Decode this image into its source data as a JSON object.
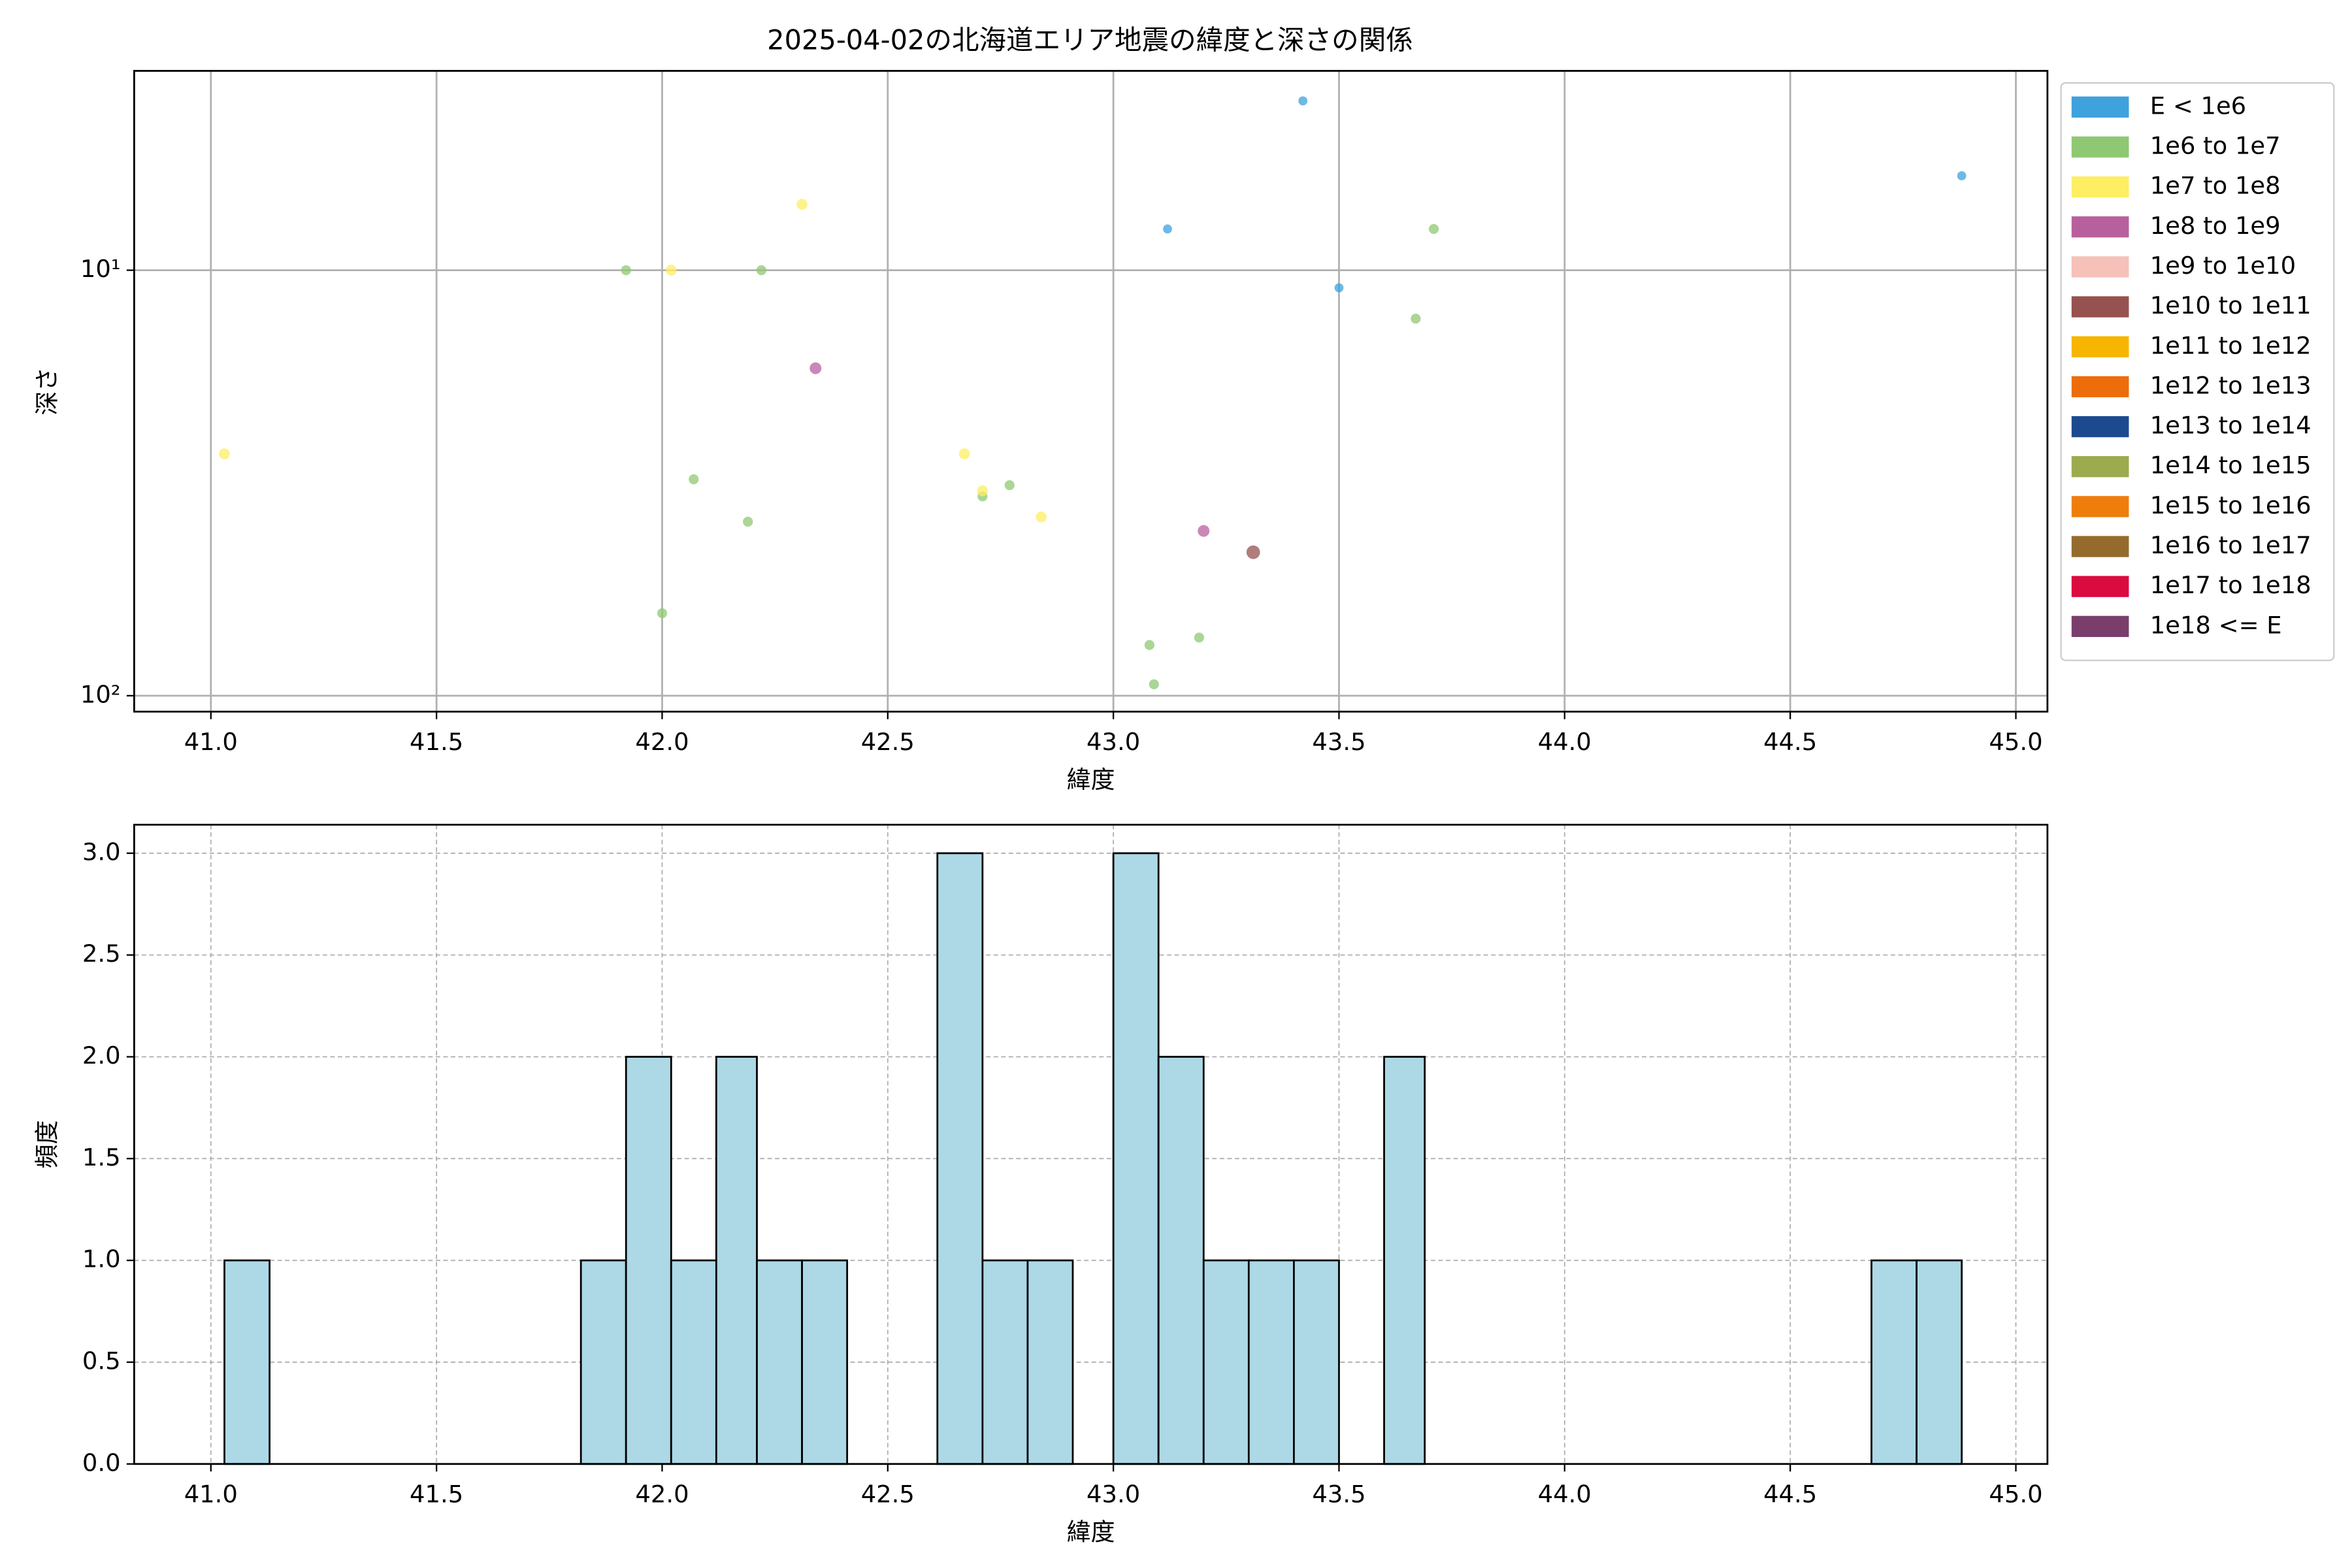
{
  "chart_data": [
    {
      "type": "scatter",
      "title": "2025-04-02の北海道エリア地震の緯度と深さの関係",
      "xlabel": "緯度",
      "ylabel": "深さ",
      "xlim": [
        40.83,
        45.07
      ],
      "ylim": [
        109,
        3.4
      ],
      "yscale": "log",
      "grid": true,
      "grid_style": "solid",
      "legend": "outside-right",
      "xticks": [
        {
          "value": 41.0,
          "label": "41.0"
        },
        {
          "value": 41.5,
          "label": "41.5"
        },
        {
          "value": 42.0,
          "label": "42.0"
        },
        {
          "value": 42.5,
          "label": "42.5"
        },
        {
          "value": 43.0,
          "label": "43.0"
        },
        {
          "value": 43.5,
          "label": "43.5"
        },
        {
          "value": 44.0,
          "label": "44.0"
        },
        {
          "value": 44.5,
          "label": "44.5"
        },
        {
          "value": 45.0,
          "label": "45.0"
        }
      ],
      "yticks": [
        {
          "value": 10,
          "label": "10¹"
        },
        {
          "value": 100,
          "label": "10²"
        }
      ],
      "series": [
        {
          "name": "E < 1e6",
          "color": "#3ea2dc",
          "x": [
            43.42,
            44.88,
            43.12,
            43.5
          ],
          "values": [
            4.0,
            6.0,
            8.0,
            11
          ]
        },
        {
          "name": "1e6 to 1e7",
          "color": "#8fc872",
          "x": [
            43.71,
            43.67,
            41.92,
            42.22,
            42.07,
            42.71,
            42.77,
            42.19,
            42.0,
            43.19,
            43.08,
            43.09
          ],
          "values": [
            8,
            13,
            10,
            10,
            31,
            34,
            32,
            39,
            64,
            73,
            76,
            94
          ]
        },
        {
          "name": "1e7 to 1e8",
          "color": "#fdee62",
          "x": [
            42.31,
            42.02,
            41.03,
            42.67,
            42.71,
            42.84
          ],
          "values": [
            7.0,
            10,
            27,
            27,
            33,
            38
          ]
        },
        {
          "name": "1e8 to 1e9",
          "color": "#b8609e",
          "x": [
            42.34,
            43.2
          ],
          "values": [
            17,
            41
          ]
        },
        {
          "name": "1e9 to 1e10",
          "color": "#f5c1b9",
          "x": [],
          "values": []
        },
        {
          "name": "1e10 to 1e11",
          "color": "#95524f",
          "x": [
            43.31
          ],
          "values": [
            46
          ]
        },
        {
          "name": "1e11 to 1e12",
          "color": "#f8b500",
          "x": [],
          "values": []
        },
        {
          "name": "1e12 to 1e13",
          "color": "#ed6d0a",
          "x": [],
          "values": []
        },
        {
          "name": "1e13 to 1e14",
          "color": "#1d4a8f",
          "x": [],
          "values": []
        },
        {
          "name": "1e14 to 1e15",
          "color": "#9cab4e",
          "x": [],
          "values": []
        },
        {
          "name": "1e15 to 1e16",
          "color": "#ef7d0c",
          "x": [],
          "values": []
        },
        {
          "name": "1e16 to 1e17",
          "color": "#946b2d",
          "x": [],
          "values": []
        },
        {
          "name": "1e17 to 1e18",
          "color": "#da0b3f",
          "x": [],
          "values": []
        },
        {
          "name": "1e18 <= E",
          "color": "#7a3e6c",
          "x": [],
          "values": []
        }
      ]
    },
    {
      "type": "histogram",
      "xlabel": "緯度",
      "ylabel": "頻度",
      "color": "#add8e6",
      "edgecolor": "#000000",
      "xlim": [
        40.83,
        45.07
      ],
      "ylim": [
        0,
        3.14
      ],
      "grid": true,
      "grid_style": "dashed",
      "xticks": [
        {
          "value": 41.0,
          "label": "41.0"
        },
        {
          "value": 41.5,
          "label": "41.5"
        },
        {
          "value": 42.0,
          "label": "42.0"
        },
        {
          "value": 42.5,
          "label": "42.5"
        },
        {
          "value": 43.0,
          "label": "43.0"
        },
        {
          "value": 43.5,
          "label": "43.5"
        },
        {
          "value": 44.0,
          "label": "44.0"
        },
        {
          "value": 44.5,
          "label": "44.5"
        },
        {
          "value": 45.0,
          "label": "45.0"
        }
      ],
      "yticks": [
        {
          "value": 0,
          "label": "0.0"
        },
        {
          "value": 0.5,
          "label": "0.5"
        },
        {
          "value": 1,
          "label": "1.0"
        },
        {
          "value": 1.5,
          "label": "1.5"
        },
        {
          "value": 2,
          "label": "2.0"
        },
        {
          "value": 2.5,
          "label": "2.5"
        },
        {
          "value": 3,
          "label": "3.0"
        }
      ],
      "bins": [
        41.03,
        41.13,
        41.23,
        41.33,
        41.42,
        41.52,
        41.62,
        41.72,
        41.82,
        41.92,
        42.02,
        42.12,
        42.21,
        42.31,
        42.41,
        42.51,
        42.61,
        42.71,
        42.81,
        42.91,
        43.0,
        43.1,
        43.2,
        43.3,
        43.4,
        43.5,
        43.6,
        43.69,
        43.79,
        43.89,
        43.99,
        44.09,
        44.19,
        44.29,
        44.39,
        44.48,
        44.58,
        44.68,
        44.78,
        44.88
      ],
      "values": [
        1,
        0,
        0,
        0,
        0,
        0,
        0,
        0,
        1,
        2,
        1,
        2,
        1,
        1,
        0,
        0,
        3,
        1,
        1,
        0,
        3,
        2,
        1,
        1,
        1,
        0,
        2,
        0,
        0,
        0,
        0,
        0,
        0,
        0,
        0,
        0,
        0,
        1,
        1
      ]
    }
  ]
}
